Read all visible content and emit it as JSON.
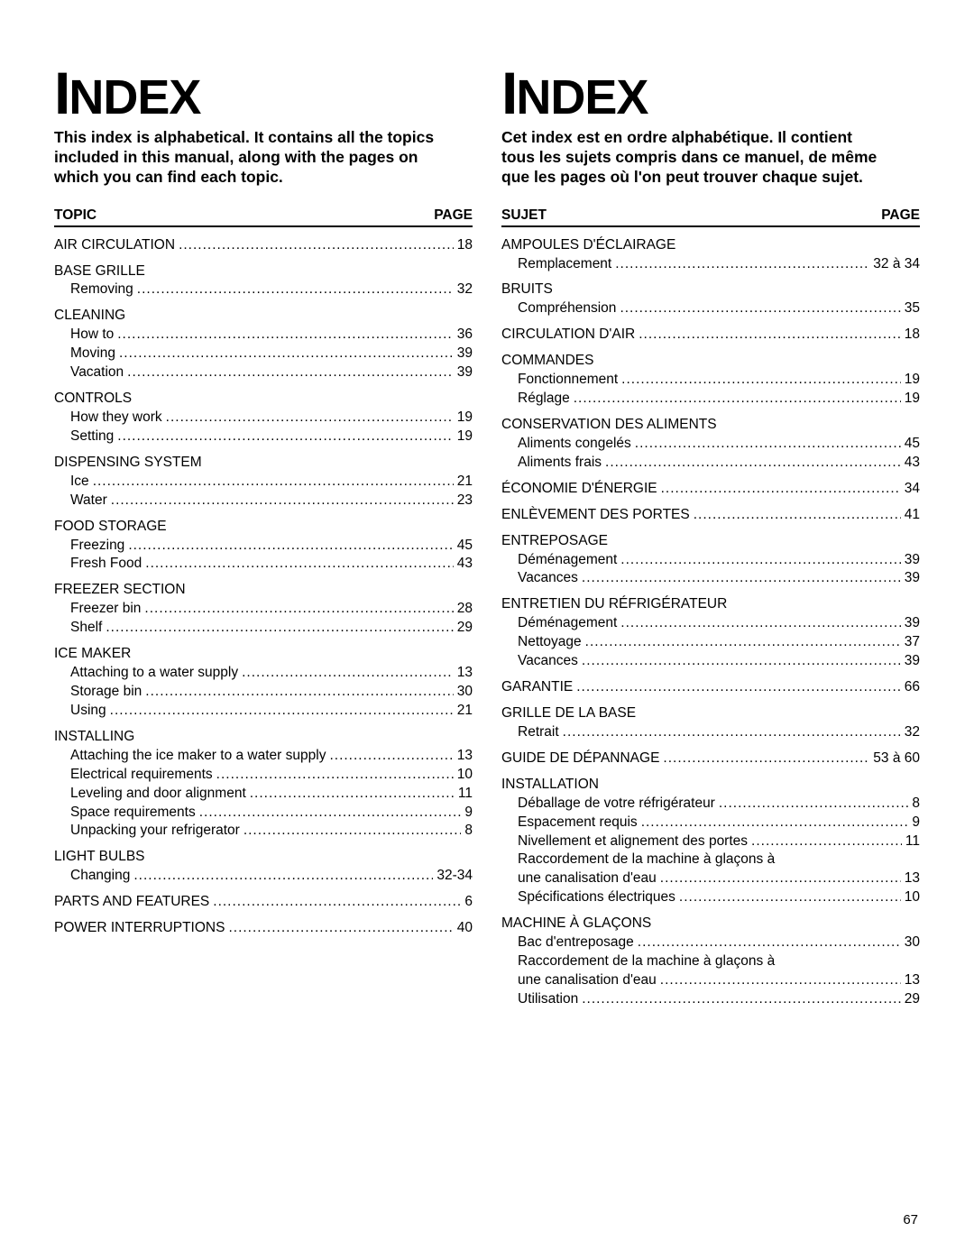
{
  "page_number": "67",
  "left": {
    "title": "INDEX",
    "intro": "This index is alphabetical. It contains all the topics included in this manual, along with the pages on which you can find each topic.",
    "header_left": "TOPIC",
    "header_right": "PAGE",
    "entries": [
      {
        "label": "AIR CIRCULATION",
        "page": "18"
      },
      {
        "label": "BASE GRILLE",
        "subs": [
          {
            "label": "Removing",
            "page": "32"
          }
        ]
      },
      {
        "label": "CLEANING",
        "subs": [
          {
            "label": "How to",
            "page": "36"
          },
          {
            "label": "Moving",
            "page": "39"
          },
          {
            "label": "Vacation",
            "page": "39"
          }
        ]
      },
      {
        "label": "CONTROLS",
        "subs": [
          {
            "label": "How they work",
            "page": "19"
          },
          {
            "label": "Setting",
            "page": "19"
          }
        ]
      },
      {
        "label": "DISPENSING SYSTEM",
        "subs": [
          {
            "label": "Ice",
            "page": "21"
          },
          {
            "label": "Water",
            "page": "23"
          }
        ]
      },
      {
        "label": "FOOD STORAGE",
        "subs": [
          {
            "label": "Freezing",
            "page": "45"
          },
          {
            "label": "Fresh Food",
            "page": "43"
          }
        ]
      },
      {
        "label": "FREEZER SECTION",
        "subs": [
          {
            "label": "Freezer bin",
            "page": "28"
          },
          {
            "label": "Shelf",
            "page": "29"
          }
        ]
      },
      {
        "label": "ICE MAKER",
        "subs": [
          {
            "label": "Attaching to a water supply",
            "page": "13"
          },
          {
            "label": "Storage bin",
            "page": "30"
          },
          {
            "label": "Using",
            "page": "21"
          }
        ]
      },
      {
        "label": "INSTALLING",
        "subs": [
          {
            "label": "Attaching the ice maker to a water supply",
            "page": "13"
          },
          {
            "label": "Electrical requirements",
            "page": "10"
          },
          {
            "label": "Leveling and door alignment",
            "page": "11"
          },
          {
            "label": "Space requirements",
            "page": "9"
          },
          {
            "label": "Unpacking your refrigerator",
            "page": "8"
          }
        ]
      },
      {
        "label": "LIGHT BULBS",
        "subs": [
          {
            "label": "Changing",
            "page": "32-34"
          }
        ]
      },
      {
        "label": "PARTS AND FEATURES",
        "page": "6"
      },
      {
        "label": "POWER INTERRUPTIONS",
        "page": "40"
      }
    ]
  },
  "right": {
    "title": "INDEX",
    "intro": "Cet index est en ordre alphabétique. Il contient tous les sujets compris dans ce manuel, de même que les pages où l'on peut trouver chaque sujet.",
    "header_left": "SUJET",
    "header_right": "PAGE",
    "entries": [
      {
        "label": "AMPOULES D'ÉCLAIRAGE",
        "subs": [
          {
            "label": "Remplacement",
            "page": "32 à 34"
          }
        ]
      },
      {
        "label": "BRUITS",
        "subs": [
          {
            "label": "Compréhension",
            "page": "35"
          }
        ]
      },
      {
        "label": "CIRCULATION D'AIR",
        "page": "18"
      },
      {
        "label": "COMMANDES",
        "subs": [
          {
            "label": "Fonctionnement",
            "page": "19"
          },
          {
            "label": "Réglage",
            "page": "19"
          }
        ]
      },
      {
        "label": "CONSERVATION DES ALIMENTS",
        "subs": [
          {
            "label": "Aliments congelés",
            "page": "45"
          },
          {
            "label": "Aliments frais",
            "page": "43"
          }
        ]
      },
      {
        "label": "ÉCONOMIE D'ÉNERGIE",
        "page": "34"
      },
      {
        "label": "ENLÈVEMENT DES PORTES",
        "page": "41"
      },
      {
        "label": "ENTREPOSAGE",
        "subs": [
          {
            "label": "Déménagement",
            "page": "39"
          },
          {
            "label": "Vacances",
            "page": "39"
          }
        ]
      },
      {
        "label": "ENTRETIEN DU RÉFRIGÉRATEUR",
        "subs": [
          {
            "label": "Déménagement",
            "page": "39"
          },
          {
            "label": "Nettoyage",
            "page": "37"
          },
          {
            "label": "Vacances",
            "page": "39"
          }
        ]
      },
      {
        "label": "GARANTIE",
        "page": "66"
      },
      {
        "label": "GRILLE DE LA BASE",
        "subs": [
          {
            "label": "Retrait",
            "page": "32"
          }
        ]
      },
      {
        "label": "GUIDE DE DÉPANNAGE",
        "page": "53 à 60"
      },
      {
        "label": "INSTALLATION",
        "subs": [
          {
            "label": "Déballage de votre réfrigérateur",
            "page": "8"
          },
          {
            "label": "Espacement requis",
            "page": "9"
          },
          {
            "label": "Nivellement et alignement des portes",
            "page": "11"
          },
          {
            "label": "Raccordement de la machine à glaçons à"
          },
          {
            "label": "une canalisation d'eau",
            "page": "13"
          },
          {
            "label": "Spécifications électriques",
            "page": "10"
          }
        ]
      },
      {
        "label": "MACHINE À GLAÇONS",
        "subs": [
          {
            "label": "Bac d'entreposage",
            "page": "30"
          },
          {
            "label": "Raccordement de la machine à glaçons à"
          },
          {
            "label": "une canalisation d'eau",
            "page": "13"
          },
          {
            "label": "Utilisation",
            "page": "29"
          }
        ]
      }
    ]
  }
}
